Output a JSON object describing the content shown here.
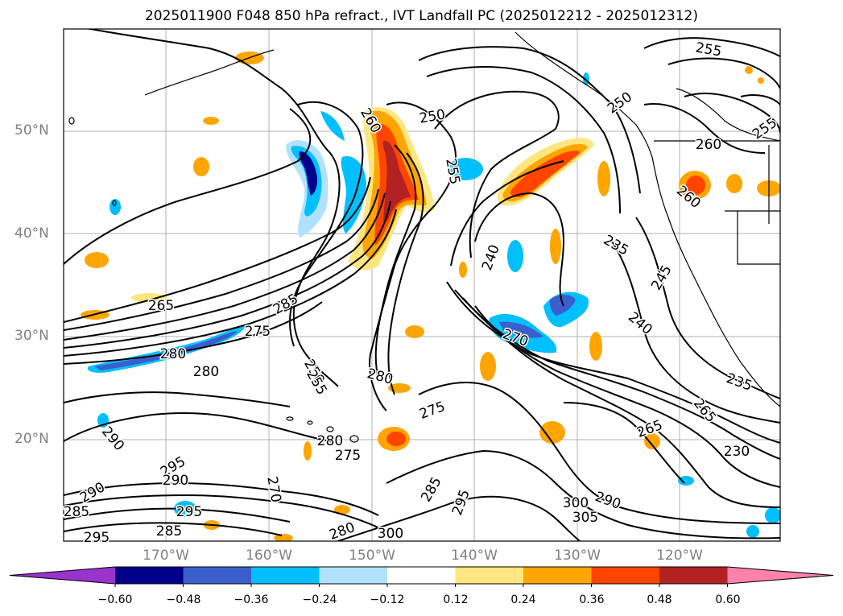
{
  "title": "2025011900 F048 850 hPa refract., IVT Landfall PC (2025012212 - 2025012312)",
  "lat_ticks": [
    "50°N",
    "40°N",
    "30°N",
    "20°N"
  ],
  "lon_ticks": [
    "170°W",
    "160°W",
    "150°W",
    "140°W",
    "130°W",
    "120°W"
  ],
  "colorbar": {
    "ticks": [
      "−0.60",
      "−0.48",
      "−0.36",
      "−0.24",
      "−0.12",
      "0.12",
      "0.24",
      "0.36",
      "0.48",
      "0.60"
    ],
    "colors": [
      "#9933cc",
      "#00008b",
      "#3a5fcd",
      "#00bfff",
      "#b0e2ff",
      "#ffffff",
      "#ffe680",
      "#ffa500",
      "#ff4500",
      "#b22222",
      "#ff82ab"
    ]
  },
  "contour_labels": [
    "250",
    "260",
    "255",
    "255",
    "250",
    "260",
    "260",
    "255",
    "240",
    "235",
    "245",
    "240",
    "235",
    "230",
    "265",
    "285",
    "275",
    "280",
    "265",
    "280",
    "250",
    "255",
    "280",
    "270",
    "275",
    "290",
    "295",
    "290",
    "280",
    "275",
    "270",
    "285",
    "295",
    "300",
    "290",
    "305",
    "280",
    "300",
    "290",
    "285",
    "295",
    "295",
    "285",
    "265"
  ]
}
